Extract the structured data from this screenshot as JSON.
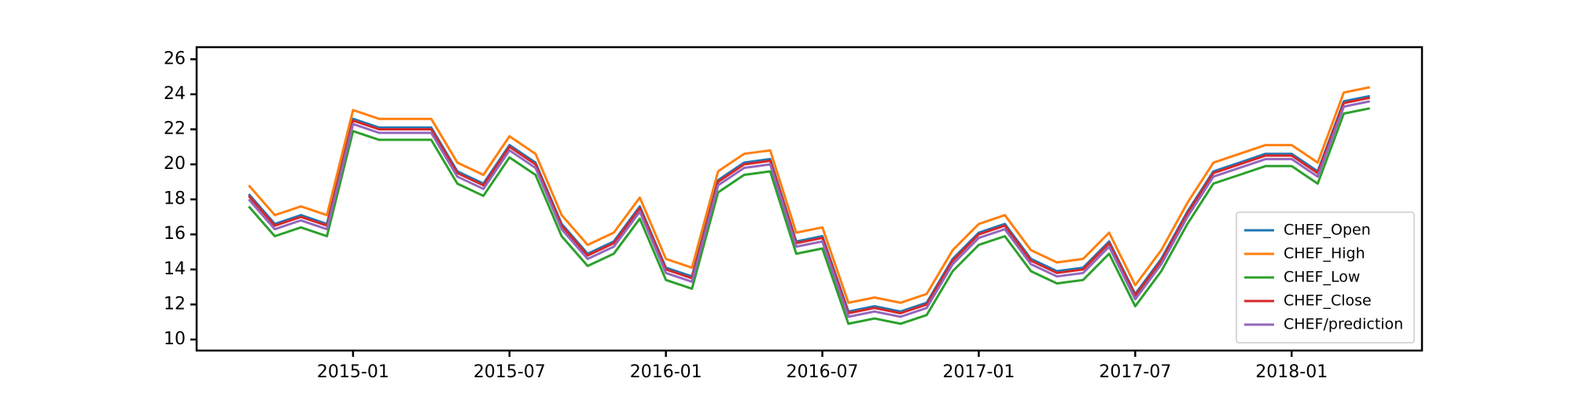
{
  "chart_data": {
    "type": "line",
    "x": [
      "2014-09",
      "2014-10",
      "2014-11",
      "2014-12",
      "2015-01",
      "2015-02",
      "2015-03",
      "2015-04",
      "2015-05",
      "2015-06",
      "2015-07",
      "2015-08",
      "2015-09",
      "2015-10",
      "2015-11",
      "2015-12",
      "2016-01",
      "2016-02",
      "2016-03",
      "2016-04",
      "2016-05",
      "2016-06",
      "2016-07",
      "2016-08",
      "2016-09",
      "2016-10",
      "2016-11",
      "2016-12",
      "2017-01",
      "2017-02",
      "2017-03",
      "2017-04",
      "2017-05",
      "2017-06",
      "2017-07",
      "2017-08",
      "2017-09",
      "2017-10",
      "2017-11",
      "2017-12",
      "2018-01",
      "2018-02",
      "2018-03",
      "2018-04"
    ],
    "series": [
      {
        "name": "CHEF_Open",
        "color": "#1f77b4",
        "values": [
          18.3,
          16.6,
          17.1,
          16.6,
          22.6,
          22.1,
          22.1,
          22.1,
          19.6,
          18.9,
          21.1,
          20.1,
          16.6,
          14.9,
          15.6,
          17.6,
          14.1,
          13.6,
          19.1,
          20.1,
          20.3,
          15.6,
          15.9,
          11.6,
          11.9,
          11.6,
          12.1,
          14.6,
          16.1,
          16.6,
          14.6,
          13.9,
          14.1,
          15.6,
          12.6,
          14.6,
          17.3,
          19.6,
          20.1,
          20.6,
          20.6,
          19.6,
          23.6,
          23.9
        ]
      },
      {
        "name": "CHEF_High",
        "color": "#ff7f0e",
        "values": [
          18.8,
          17.1,
          17.6,
          17.1,
          23.1,
          22.6,
          22.6,
          22.6,
          20.1,
          19.4,
          21.6,
          20.6,
          17.1,
          15.4,
          16.1,
          18.1,
          14.6,
          14.1,
          19.6,
          20.6,
          20.8,
          16.1,
          16.4,
          12.1,
          12.4,
          12.1,
          12.6,
          15.1,
          16.6,
          17.1,
          15.1,
          14.4,
          14.6,
          16.1,
          13.1,
          15.1,
          17.8,
          20.1,
          20.6,
          21.1,
          21.1,
          20.1,
          24.1,
          24.4
        ]
      },
      {
        "name": "CHEF_Low",
        "color": "#2ca02c",
        "values": [
          17.6,
          15.9,
          16.4,
          15.9,
          21.9,
          21.4,
          21.4,
          21.4,
          18.9,
          18.2,
          20.4,
          19.4,
          15.9,
          14.2,
          14.9,
          16.9,
          13.4,
          12.9,
          18.4,
          19.4,
          19.6,
          14.9,
          15.2,
          10.9,
          11.2,
          10.9,
          11.4,
          13.9,
          15.4,
          15.9,
          13.9,
          13.2,
          13.4,
          14.9,
          11.9,
          13.9,
          16.6,
          18.9,
          19.4,
          19.9,
          19.9,
          18.9,
          22.9,
          23.2
        ]
      },
      {
        "name": "CHEF_Close",
        "color": "#d62728",
        "values": [
          18.2,
          16.5,
          17.0,
          16.5,
          22.5,
          22.0,
          22.0,
          22.0,
          19.5,
          18.8,
          21.0,
          20.0,
          16.5,
          14.8,
          15.5,
          17.5,
          14.0,
          13.5,
          19.0,
          20.0,
          20.2,
          15.5,
          15.8,
          11.5,
          11.8,
          11.5,
          12.0,
          14.5,
          16.0,
          16.5,
          14.5,
          13.8,
          14.0,
          15.5,
          12.5,
          14.5,
          17.2,
          19.5,
          20.0,
          20.5,
          20.5,
          19.5,
          23.5,
          23.8
        ]
      },
      {
        "name": "CHEF/prediction",
        "color": "#9467bd",
        "values": [
          18.0,
          16.3,
          16.8,
          16.3,
          22.3,
          21.8,
          21.8,
          21.8,
          19.3,
          18.6,
          20.8,
          19.8,
          16.3,
          14.6,
          15.3,
          17.3,
          13.8,
          13.3,
          18.8,
          19.8,
          20.0,
          15.3,
          15.6,
          11.3,
          11.6,
          11.3,
          11.8,
          14.3,
          15.8,
          16.3,
          14.3,
          13.6,
          13.8,
          15.3,
          12.3,
          14.3,
          17.0,
          19.3,
          19.8,
          20.3,
          20.3,
          19.3,
          23.3,
          23.6
        ]
      }
    ],
    "xlim": [
      "2014-07",
      "2018-06"
    ],
    "xticks": [
      "2015-01",
      "2015-07",
      "2016-01",
      "2016-07",
      "2017-01",
      "2017-07",
      "2018-01"
    ],
    "ylim": [
      9.37,
      26.69
    ],
    "yticks": [
      10,
      12,
      14,
      16,
      18,
      20,
      22,
      24,
      26
    ],
    "legend": "lower right"
  }
}
